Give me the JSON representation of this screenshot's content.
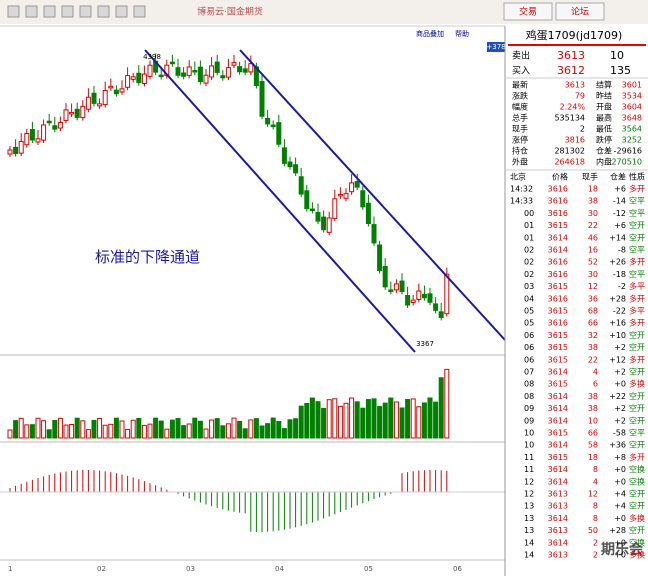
{
  "header": {
    "title": "博易云·国金期货",
    "buttons": [
      "交易",
      "论坛"
    ]
  },
  "chart": {
    "toolbar": [
      "商品叠加",
      "帮助"
    ],
    "badge": "+378",
    "high_label": "4398",
    "low_label": "3367",
    "annotation": "标准的下降通道",
    "x_labels": [
      "1",
      "02",
      "03",
      "04",
      "05",
      "06"
    ],
    "watermark": "期乐会"
  },
  "quote": {
    "title": "鸡蛋1709(jd1709)",
    "ask": {
      "label": "卖出",
      "price": "3613",
      "volume": "10"
    },
    "bid": {
      "label": "买入",
      "price": "3612",
      "volume": "135"
    },
    "rows": [
      [
        "最新",
        "3613",
        "结算",
        "3601"
      ],
      [
        "涨跌",
        "79",
        "昨结",
        "3534"
      ],
      [
        "幅度",
        "2.24%",
        "开盘",
        "3604"
      ],
      [
        "总手",
        "535134",
        "最高",
        "3648"
      ],
      [
        "现手",
        "2",
        "最低",
        "3564"
      ],
      [
        "涨停",
        "3816",
        "跌停",
        "3252"
      ],
      [
        "持仓",
        "281302",
        "仓差",
        "-29616"
      ],
      [
        "外盘",
        "264618",
        "内盘",
        "270510"
      ]
    ]
  },
  "ticks": {
    "header": [
      "北京",
      "价格",
      "现手",
      "仓差",
      "性质"
    ],
    "rows": [
      [
        "14:32",
        "3616",
        "18",
        "+6",
        "多开"
      ],
      [
        "14:33",
        "3616",
        "38",
        "-14",
        "空平"
      ],
      [
        "00",
        "3616",
        "30",
        "-12",
        "空平"
      ],
      [
        "01",
        "3615",
        "22",
        "+6",
        "空开"
      ],
      [
        "01",
        "3614",
        "46",
        "+14",
        "空开"
      ],
      [
        "02",
        "3614",
        "16",
        "-8",
        "空平"
      ],
      [
        "02",
        "3616",
        "52",
        "+26",
        "多开"
      ],
      [
        "02",
        "3616",
        "30",
        "-18",
        "空平"
      ],
      [
        "03",
        "3615",
        "12",
        "-2",
        "多平"
      ],
      [
        "04",
        "3616",
        "36",
        "+28",
        "多开"
      ],
      [
        "05",
        "3615",
        "68",
        "-22",
        "多平"
      ],
      [
        "05",
        "3616",
        "66",
        "+16",
        "多开"
      ],
      [
        "06",
        "3615",
        "32",
        "+10",
        "空开"
      ],
      [
        "06",
        "3615",
        "38",
        "+2",
        "空开"
      ],
      [
        "06",
        "3615",
        "22",
        "+12",
        "多开"
      ],
      [
        "07",
        "3614",
        "4",
        "+2",
        "空开"
      ],
      [
        "08",
        "3615",
        "6",
        "+0",
        "多换"
      ],
      [
        "08",
        "3614",
        "38",
        "+22",
        "空开"
      ],
      [
        "09",
        "3614",
        "38",
        "+2",
        "空开"
      ],
      [
        "09",
        "3614",
        "10",
        "+2",
        "空开"
      ],
      [
        "10",
        "3615",
        "66",
        "-58",
        "空平"
      ],
      [
        "10",
        "3614",
        "58",
        "+36",
        "空开"
      ],
      [
        "11",
        "3615",
        "18",
        "+8",
        "多开"
      ],
      [
        "11",
        "3614",
        "8",
        "+0",
        "空换"
      ],
      [
        "12",
        "3614",
        "4",
        "+0",
        "空换"
      ],
      [
        "12",
        "3613",
        "12",
        "+4",
        "空开"
      ],
      [
        "13",
        "3613",
        "8",
        "+4",
        "空开"
      ],
      [
        "13",
        "3614",
        "8",
        "+0",
        "多换"
      ],
      [
        "13",
        "3613",
        "50",
        "+28",
        "空开"
      ],
      [
        "14",
        "3614",
        "2",
        "+0",
        "空换"
      ],
      [
        "14",
        "3613",
        "2",
        "+0",
        "多换"
      ]
    ]
  }
}
